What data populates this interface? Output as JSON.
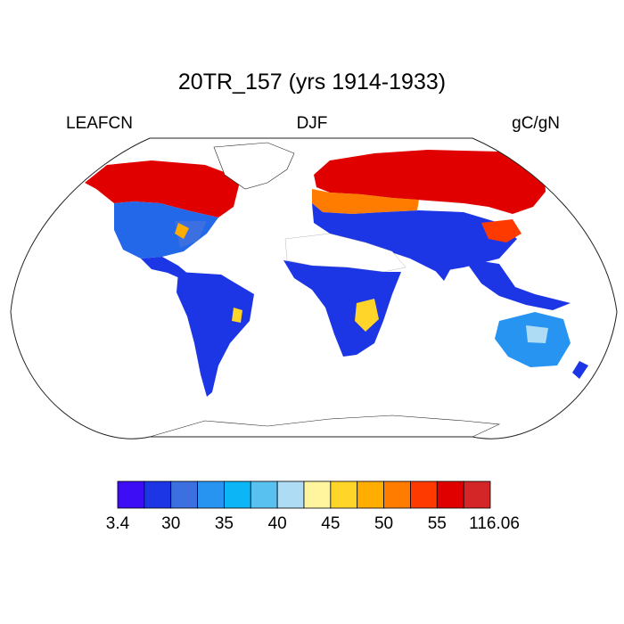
{
  "title": "20TR_157 (yrs 1914-1933)",
  "variable": "LEAFCN",
  "season": "DJF",
  "units": "gC/gN",
  "colorbar": {
    "colors": [
      "#3d0ef5",
      "#1c36e6",
      "#3c6fe0",
      "#2894f2",
      "#0cb5f5",
      "#59c1f0",
      "#aedcf4",
      "#fff59e",
      "#ffd52a",
      "#ffad00",
      "#ff7c00",
      "#ff3a00",
      "#e10000",
      "#d42626"
    ],
    "labels": [
      "3.4",
      "30",
      "35",
      "40",
      "45",
      "50",
      "55",
      "116.06"
    ]
  },
  "chart_data": {
    "type": "heatmap",
    "title": "20TR_157 (yrs 1914-1933)",
    "variable": "LEAFCN",
    "season": "DJF",
    "units": "gC/gN",
    "projection": "Robinson",
    "levels": [
      3.4,
      30,
      35,
      40,
      45,
      50,
      55,
      116.06
    ]
  }
}
